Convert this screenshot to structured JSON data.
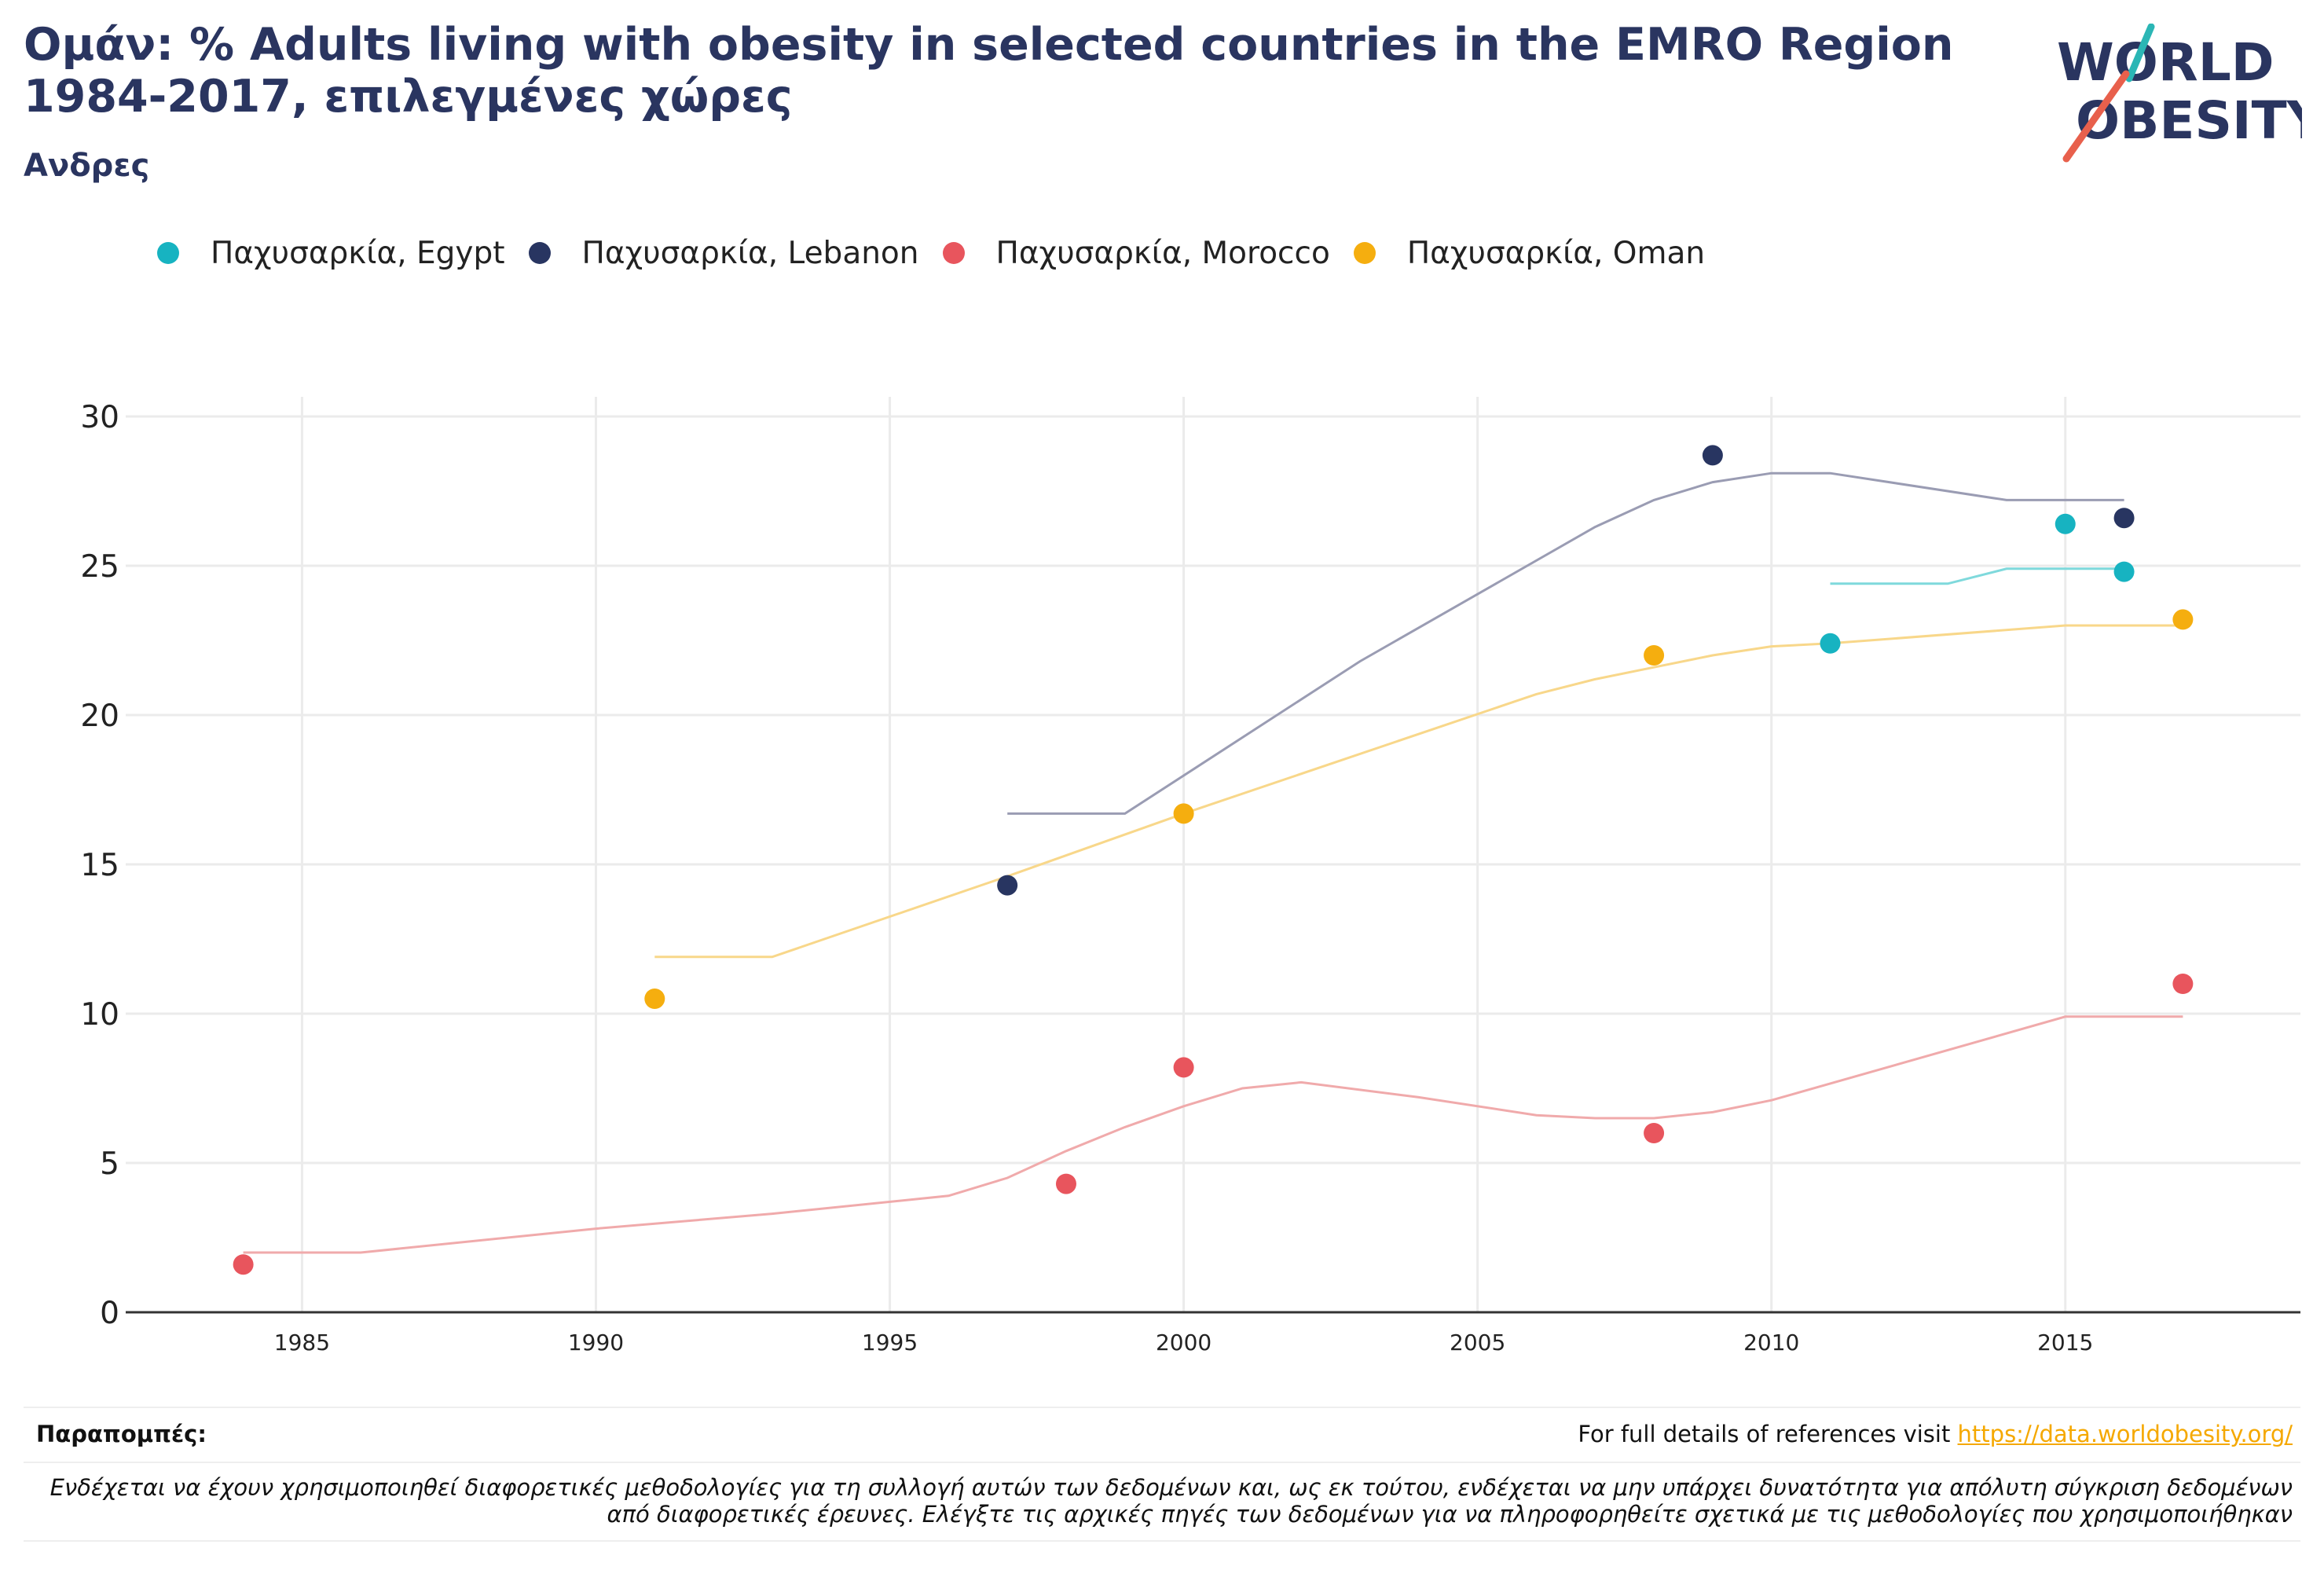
{
  "header": {
    "title": "Ομάν: % Adults living with obesity in selected countries in the EMRO Region 1984-2017, επιλεγμένες χώρες",
    "subtitle": "Ανδρες"
  },
  "logo": {
    "line1": "WORLD",
    "line2": "OBESITY",
    "accent_teal": "#2bb6b5",
    "accent_red": "#e8604c",
    "text_color": "#2a3560"
  },
  "legend": [
    {
      "label": "Παχυσαρκία, Egypt",
      "color": "#17b3c1"
    },
    {
      "label": "Παχυσαρκία, Lebanon",
      "color": "#283561"
    },
    {
      "label": "Παχυσαρκία, Morocco",
      "color": "#e8555d"
    },
    {
      "label": "Παχυσαρκία, Oman",
      "color": "#f5ae0f"
    }
  ],
  "chart_data": {
    "type": "scatter",
    "xlim": [
      1982,
      2019
    ],
    "ylim": [
      0,
      30
    ],
    "xticks": [
      1985,
      1990,
      1995,
      2000,
      2005,
      2010,
      2015
    ],
    "yticks": [
      0,
      5,
      10,
      15,
      20,
      25,
      30
    ],
    "grid": true,
    "legend_position": "top",
    "series": [
      {
        "name": "Παχυσαρκία, Egypt",
        "color": "#17b3c1",
        "trend_color": "#7fd9dc",
        "points": [
          [
            2011,
            22.4
          ],
          [
            2015,
            26.4
          ],
          [
            2016,
            24.8
          ]
        ],
        "trend": [
          [
            2011,
            24.4
          ],
          [
            2013,
            24.4
          ],
          [
            2014,
            24.9
          ],
          [
            2016,
            24.9
          ]
        ]
      },
      {
        "name": "Παχυσαρκία, Lebanon",
        "color": "#283561",
        "trend_color": "#9a9cb3",
        "points": [
          [
            1997,
            14.3
          ],
          [
            2009,
            28.7
          ],
          [
            2016,
            26.6
          ]
        ],
        "trend": [
          [
            1997,
            16.7
          ],
          [
            1999,
            16.7
          ],
          [
            2003,
            21.8
          ],
          [
            2007,
            26.3
          ],
          [
            2008,
            27.2
          ],
          [
            2009,
            27.8
          ],
          [
            2010,
            28.1
          ],
          [
            2011,
            28.1
          ],
          [
            2014,
            27.2
          ],
          [
            2016,
            27.2
          ]
        ]
      },
      {
        "name": "Παχυσαρκία, Morocco",
        "color": "#e8555d",
        "trend_color": "#f0aaab",
        "points": [
          [
            1984,
            1.6
          ],
          [
            1998,
            4.3
          ],
          [
            2000,
            8.2
          ],
          [
            2008,
            6.0
          ],
          [
            2017,
            11.0
          ]
        ],
        "trend": [
          [
            1984,
            2.0
          ],
          [
            1986,
            2.0
          ],
          [
            1990,
            2.8
          ],
          [
            1993,
            3.3
          ],
          [
            1996,
            3.9
          ],
          [
            1997,
            4.5
          ],
          [
            1998,
            5.4
          ],
          [
            1999,
            6.2
          ],
          [
            2000,
            6.9
          ],
          [
            2001,
            7.5
          ],
          [
            2002,
            7.7
          ],
          [
            2004,
            7.2
          ],
          [
            2006,
            6.6
          ],
          [
            2007,
            6.5
          ],
          [
            2008,
            6.5
          ],
          [
            2009,
            6.7
          ],
          [
            2010,
            7.1
          ],
          [
            2015,
            9.9
          ],
          [
            2017,
            9.9
          ]
        ]
      },
      {
        "name": "Παχυσαρκία, Oman",
        "color": "#f5ae0f",
        "trend_color": "#f8d78a",
        "points": [
          [
            1991,
            10.5
          ],
          [
            2000,
            16.7
          ],
          [
            2008,
            22.0
          ],
          [
            2017,
            23.2
          ]
        ],
        "trend": [
          [
            1991,
            11.9
          ],
          [
            1993,
            11.9
          ],
          [
            1997,
            14.6
          ],
          [
            2000,
            16.7
          ],
          [
            2006,
            20.7
          ],
          [
            2007,
            21.2
          ],
          [
            2008,
            21.6
          ],
          [
            2009,
            22.0
          ],
          [
            2010,
            22.3
          ],
          [
            2011,
            22.4
          ],
          [
            2015,
            23.0
          ],
          [
            2017,
            23.0
          ]
        ]
      }
    ]
  },
  "footer": {
    "refs_label": "Παραπομπές:",
    "refs_text": "For full details of references visit ",
    "refs_link": "https://data.worldobesity.org/",
    "disclaimer": "Ενδέχεται να έχουν χρησιμοποιηθεί διαφορετικές μεθοδολογίες για τη συλλογή αυτών των δεδομένων και, ως εκ τούτου, ενδέχεται να μην υπάρχει δυνατότητα για απόλυτη σύγκριση δεδομένων από διαφορετικές έρευνες. Ελέγξτε τις αρχικές πηγές των δεδομένων για να πληροφορηθείτε σχετικά με τις μεθοδολογίες που χρησιμοποιήθηκαν"
  }
}
